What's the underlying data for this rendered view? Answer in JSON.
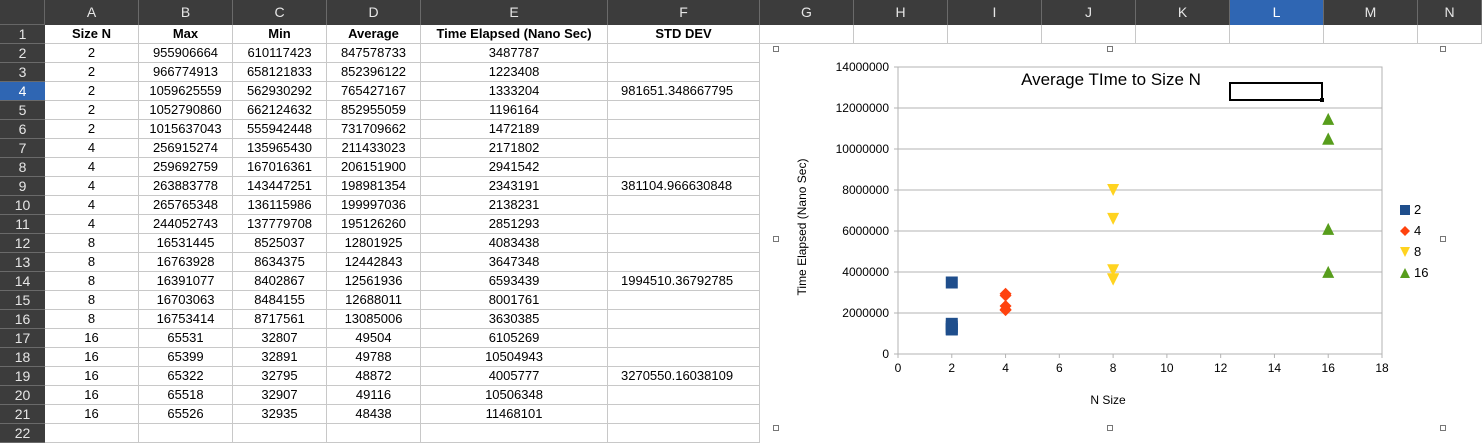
{
  "sheet": {
    "columns": [
      "A",
      "B",
      "C",
      "D",
      "E",
      "F",
      "G",
      "H",
      "I",
      "J",
      "K",
      "L",
      "M",
      "N"
    ],
    "selected_column": "L",
    "rows": [
      "1",
      "2",
      "3",
      "4",
      "5",
      "6",
      "7",
      "8",
      "9",
      "10",
      "11",
      "12",
      "13",
      "14",
      "15",
      "16",
      "17",
      "18",
      "19",
      "20",
      "21",
      "22"
    ],
    "selected_row": "4",
    "headers": [
      "Size N",
      "Max",
      "Min",
      "Average",
      "Time Elapsed (Nano Sec)",
      "STD DEV"
    ],
    "data": [
      [
        "2",
        "955906664",
        "610117423",
        "847578733",
        "3487787",
        ""
      ],
      [
        "2",
        "966774913",
        "658121833",
        "852396122",
        "1223408",
        ""
      ],
      [
        "2",
        "1059625559",
        "562930292",
        "765427167",
        "1333204",
        "981651.348667795"
      ],
      [
        "2",
        "1052790860",
        "662124632",
        "852955059",
        "1196164",
        ""
      ],
      [
        "2",
        "1015637043",
        "555942448",
        "731709662",
        "1472189",
        ""
      ],
      [
        "4",
        "256915274",
        "135965430",
        "211433023",
        "2171802",
        ""
      ],
      [
        "4",
        "259692759",
        "167016361",
        "206151900",
        "2941542",
        ""
      ],
      [
        "4",
        "263883778",
        "143447251",
        "198981354",
        "2343191",
        "381104.966630848"
      ],
      [
        "4",
        "265765348",
        "136115986",
        "199997036",
        "2138231",
        ""
      ],
      [
        "4",
        "244052743",
        "137779708",
        "195126260",
        "2851293",
        ""
      ],
      [
        "8",
        "16531445",
        "8525037",
        "12801925",
        "4083438",
        ""
      ],
      [
        "8",
        "16763928",
        "8634375",
        "12442843",
        "3647348",
        ""
      ],
      [
        "8",
        "16391077",
        "8402867",
        "12561936",
        "6593439",
        "1994510.36792785"
      ],
      [
        "8",
        "16703063",
        "8484155",
        "12688011",
        "8001761",
        ""
      ],
      [
        "8",
        "16753414",
        "8717561",
        "13085006",
        "3630385",
        ""
      ],
      [
        "16",
        "65531",
        "32807",
        "49504",
        "6105269",
        ""
      ],
      [
        "16",
        "65399",
        "32891",
        "49788",
        "10504943",
        ""
      ],
      [
        "16",
        "65322",
        "32795",
        "48872",
        "4005777",
        "3270550.16038109"
      ],
      [
        "16",
        "65518",
        "32907",
        "49116",
        "10506348",
        ""
      ],
      [
        "16",
        "65526",
        "32935",
        "48438",
        "11468101",
        ""
      ]
    ]
  },
  "chart_data": {
    "type": "scatter",
    "title": "Average TIme to Size N",
    "xlabel": "N Size",
    "ylabel": "Time Elapsed (Nano Sec)",
    "xlim": [
      0,
      18
    ],
    "ylim": [
      0,
      14000000
    ],
    "x_ticks": [
      "0",
      "2",
      "4",
      "6",
      "8",
      "10",
      "12",
      "14",
      "16",
      "18"
    ],
    "y_ticks": [
      "0",
      "2000000",
      "4000000",
      "6000000",
      "8000000",
      "10000000",
      "12000000",
      "14000000"
    ],
    "grid": "horizontal",
    "legend": "right",
    "series": [
      {
        "name": "2",
        "marker": "square",
        "color": "#1f4e8c",
        "x": [
          2,
          2,
          2,
          2,
          2
        ],
        "y": [
          3487787,
          1223408,
          1333204,
          1196164,
          1472189
        ]
      },
      {
        "name": "4",
        "marker": "diamond",
        "color": "#ff420e",
        "x": [
          4,
          4,
          4,
          4,
          4
        ],
        "y": [
          2171802,
          2941542,
          2343191,
          2138231,
          2851293
        ]
      },
      {
        "name": "8",
        "marker": "triangle-down",
        "color": "#ffd320",
        "x": [
          8,
          8,
          8,
          8,
          8
        ],
        "y": [
          4083438,
          3647348,
          6593439,
          8001761,
          3630385
        ]
      },
      {
        "name": "16",
        "marker": "triangle-up",
        "color": "#579d1c",
        "x": [
          16,
          16,
          16,
          16,
          16
        ],
        "y": [
          6105269,
          10504943,
          4005777,
          10506348,
          11468101
        ]
      }
    ]
  }
}
